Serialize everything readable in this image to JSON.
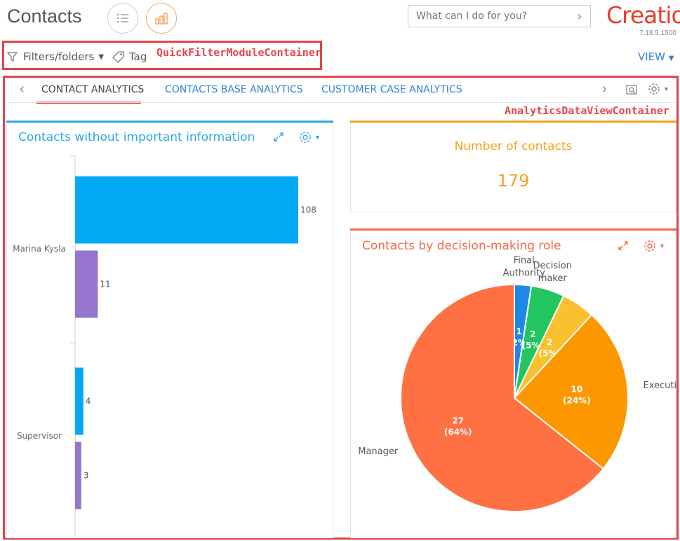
{
  "header": {
    "title": "Contacts",
    "command_placeholder": "What can I do for you?",
    "logo_text": "Creatio",
    "version": "7.18.5.1500"
  },
  "quick_filter": {
    "filters_label": "Filters/folders",
    "tag_label": "Tag",
    "view_label": "VIEW",
    "annotation": "QuickFilterModuleContainer"
  },
  "tabs": [
    {
      "label": "CONTACT ANALYTICS",
      "active": true
    },
    {
      "label": "CONTACTS BASE ANALYTICS",
      "active": false
    },
    {
      "label": "CUSTOMER CASE ANALYTICS",
      "active": false
    }
  ],
  "analytics_annotation": "AnalyticsDataViewContainer",
  "widgets": {
    "missing_info": {
      "title": "Contacts without important information"
    },
    "number": {
      "title": "Number of contacts",
      "value": "179"
    },
    "roles": {
      "title": "Contacts by decision-making role"
    }
  },
  "colors": {
    "accent_blue": "#2d84d8",
    "bar_blue": "#03a9f4",
    "bar_purple": "#9575cd",
    "orange": "#f6a11c",
    "red_orange": "#f06b46",
    "annotation_red": "#e0444a"
  },
  "chart_data": [
    {
      "type": "bar",
      "orientation": "horizontal",
      "title": "Contacts without important information",
      "categories": [
        "Marina Kysla",
        "Supervisor"
      ],
      "series": [
        {
          "color": "#03a9f4",
          "values": [
            108,
            4
          ]
        },
        {
          "color": "#9575cd",
          "values": [
            11,
            3
          ]
        }
      ],
      "xlim": [
        0,
        108
      ]
    },
    {
      "type": "pie",
      "title": "Contacts by decision-making role",
      "slices": [
        {
          "label": "Final Authority",
          "value": 1,
          "percent": "2%",
          "color": "#1e88e5"
        },
        {
          "label": "Decision maker",
          "value": 2,
          "percent": "5%",
          "color": "#22c55e"
        },
        {
          "label": "",
          "value": 2,
          "percent": "5%",
          "color": "#fbc02d"
        },
        {
          "label": "Executive",
          "value": 10,
          "percent": "24%",
          "color": "#fb9800"
        },
        {
          "label": "Manager",
          "value": 27,
          "percent": "64%",
          "color": "#ff7043"
        }
      ]
    }
  ]
}
